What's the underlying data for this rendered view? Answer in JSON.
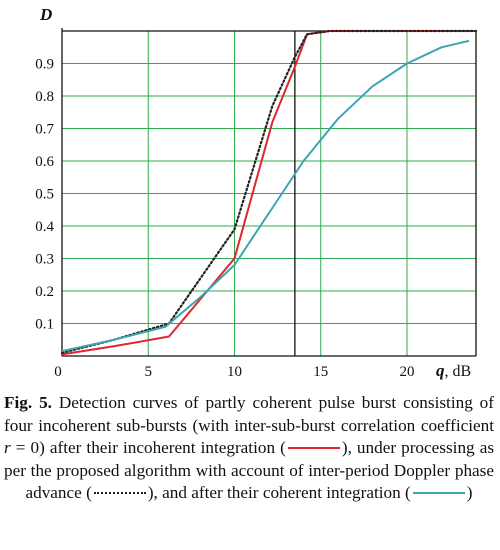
{
  "chart_data": {
    "type": "line",
    "xlabel_symbol": "q",
    "xlabel_unit": ", dB",
    "ylabel": "D",
    "xlim": [
      0,
      24
    ],
    "ylim": [
      0,
      1
    ],
    "x_ticks": [
      0,
      5,
      10,
      15,
      20
    ],
    "y_ticks": [
      0.1,
      0.2,
      0.3,
      0.4,
      0.5,
      0.6,
      0.7,
      0.8,
      0.9
    ],
    "x_gridlines": [
      5,
      10,
      15,
      20
    ],
    "y_gridlines": [
      0.1,
      0.2,
      0.3,
      0.4,
      0.5,
      0.6,
      0.7,
      0.8,
      0.9,
      1.0
    ],
    "vertical_markers": [
      13.5
    ],
    "series": [
      {
        "style": "solid",
        "color": "#e0262e",
        "points": [
          [
            0,
            0.005
          ],
          [
            3,
            0.03
          ],
          [
            6.2,
            0.06
          ],
          [
            10,
            0.3
          ],
          [
            12.2,
            0.72
          ],
          [
            13.5,
            0.89
          ],
          [
            14.2,
            0.99
          ],
          [
            15.5,
            1.0
          ],
          [
            24,
            1.0
          ]
        ]
      },
      {
        "style": "dotted",
        "color": "#222222",
        "points": [
          [
            0,
            0.01
          ],
          [
            3,
            0.05
          ],
          [
            6.2,
            0.1
          ],
          [
            10,
            0.39
          ],
          [
            12.2,
            0.77
          ],
          [
            13.5,
            0.92
          ],
          [
            14.2,
            0.99
          ],
          [
            15.5,
            1.0
          ],
          [
            24,
            1.0
          ]
        ]
      },
      {
        "style": "solid",
        "color": "#3aa6b0",
        "points": [
          [
            0,
            0.015
          ],
          [
            3,
            0.05
          ],
          [
            6,
            0.09
          ],
          [
            8,
            0.18
          ],
          [
            10,
            0.28
          ],
          [
            12,
            0.44
          ],
          [
            14,
            0.6
          ],
          [
            16,
            0.73
          ],
          [
            18,
            0.83
          ],
          [
            20,
            0.9
          ],
          [
            22,
            0.95
          ],
          [
            23.6,
            0.97
          ]
        ]
      }
    ]
  },
  "caption": {
    "fig_label": "Fig. 5.",
    "part1": " Detection curves of partly coherent pulse burst consisting of four incoherent sub-bursts (with inter-sub-burst correlation coefficient ",
    "r_symbol": "r",
    "part2": " = 0) after their incoherent integration (",
    "part3": "), under processing as per the proposed algorithm with account of inter-period Doppler phase advance (",
    "part4": "), and after their coherent integration (",
    "part5": ")"
  }
}
